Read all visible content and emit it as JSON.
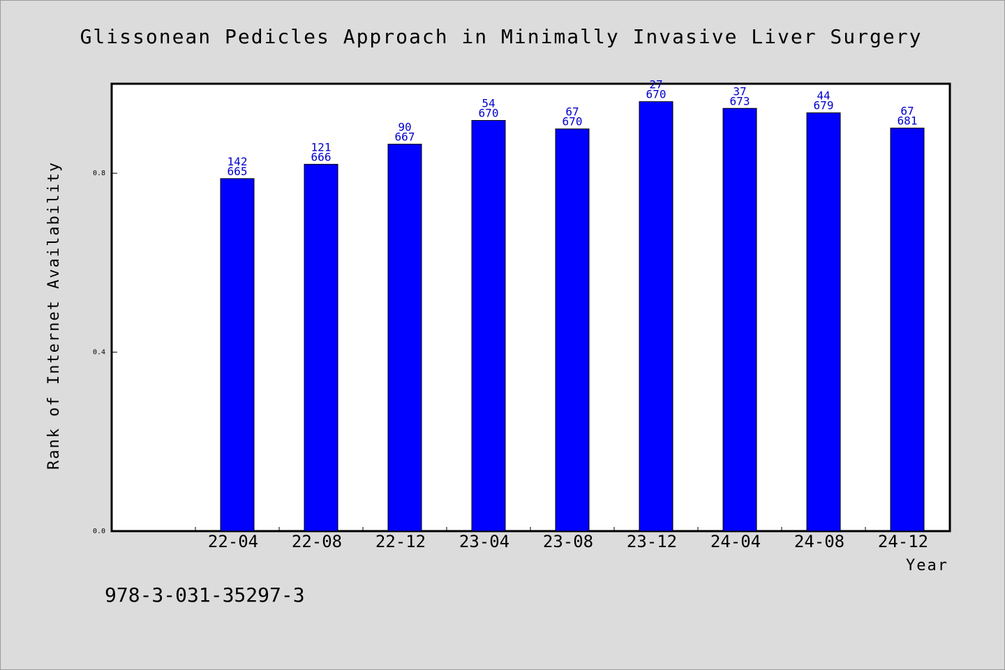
{
  "footer": {
    "id_text": "978-3-031-35297-3"
  },
  "chart_data": {
    "type": "bar",
    "title": "Glissonean Pedicles Approach in Minimally Invasive Liver Surgery",
    "xlabel": "Year",
    "ylabel": "Rank of Internet Availability",
    "categories": [
      "22-04",
      "22-08",
      "22-12",
      "23-04",
      "23-08",
      "23-12",
      "24-04",
      "24-08",
      "24-12"
    ],
    "values": [
      0.788,
      0.82,
      0.865,
      0.918,
      0.899,
      0.96,
      0.945,
      0.935,
      0.901
    ],
    "rank_labels": [
      "142",
      "121",
      "90",
      "54",
      "67",
      "27",
      "37",
      "44",
      "67"
    ],
    "total_labels": [
      "665",
      "666",
      "667",
      "670",
      "670",
      "670",
      "673",
      "679",
      "681"
    ],
    "yticks": [
      "0.0",
      "0.4",
      "0.8"
    ],
    "ylim": [
      0,
      1.0
    ],
    "bar_color": "#0000ff",
    "label_color": "#0000cc",
    "grid": false,
    "legend": "none"
  }
}
